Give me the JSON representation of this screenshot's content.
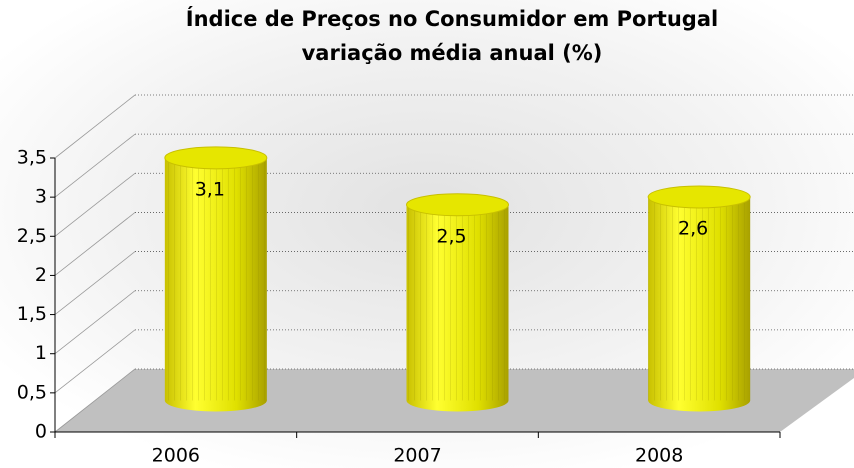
{
  "chart_data": {
    "type": "bar3d",
    "title": "Índice de Preços no Consumidor em Portugal",
    "subtitle": "variação média anual (%)",
    "categories": [
      "2006",
      "2007",
      "2008"
    ],
    "values": [
      3.1,
      2.5,
      2.6
    ],
    "value_labels": [
      "3,1",
      "2,5",
      "2,6"
    ],
    "color": "#e6e600",
    "ylim": [
      0,
      3.5
    ],
    "yticks": [
      0,
      {
        "value": 0.5,
        "label": "0,5"
      },
      1,
      {
        "value": 1.5,
        "label": "1,5"
      },
      2,
      {
        "value": 2.5,
        "label": "2,5"
      },
      3,
      {
        "value": 3.5,
        "label": "3,5"
      }
    ],
    "grid": true
  }
}
